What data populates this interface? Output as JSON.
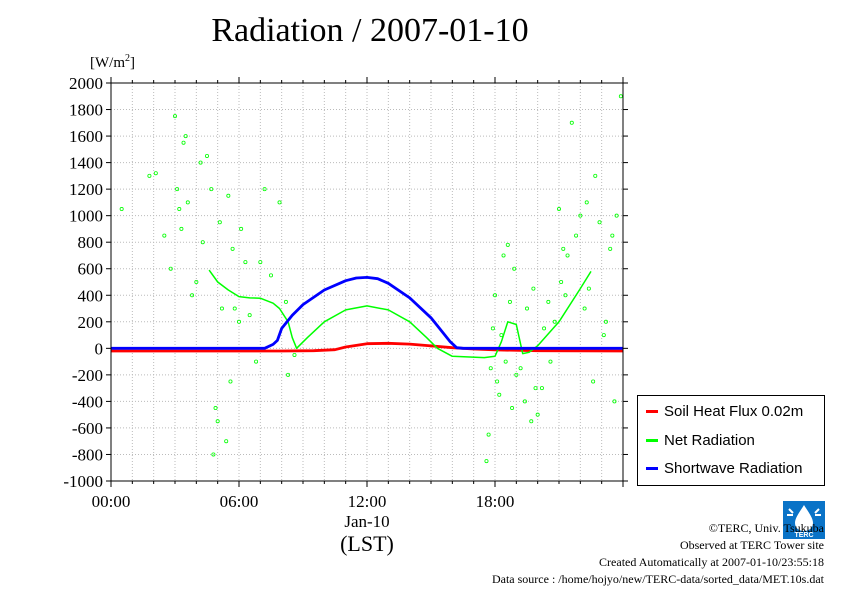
{
  "chart_data": {
    "type": "line",
    "title": "Radiation / 2007-01-10",
    "ylabel_unit": "W/m",
    "ylabel_unit_exp": "2",
    "ylim": [
      -1000,
      2000
    ],
    "y_ticks": [
      "2000",
      "1800",
      "1600",
      "1400",
      "1200",
      "1000",
      "800",
      "600",
      "400",
      "200",
      "0",
      "-200",
      "-400",
      "-600",
      "-800",
      "-1000"
    ],
    "y_tick_values": [
      2000,
      1800,
      1600,
      1400,
      1200,
      1000,
      800,
      600,
      400,
      200,
      0,
      -200,
      -400,
      -600,
      -800,
      -1000
    ],
    "xlim_hours": [
      0,
      24
    ],
    "x_ticks": [
      "00:00",
      "06:00",
      "12:00",
      "18:00"
    ],
    "x_tick_hours": [
      0,
      6,
      12,
      18
    ],
    "x_sublabel": "Jan-10",
    "x_unit_label": "(LST)",
    "grid": true,
    "legend_position": "bottom-right",
    "series": [
      {
        "name": "Soil Heat Flux 0.02m",
        "color": "#ff0000",
        "points": [
          [
            0,
            -20
          ],
          [
            4,
            -20
          ],
          [
            8,
            -20
          ],
          [
            9.5,
            -18
          ],
          [
            10.5,
            -10
          ],
          [
            11,
            10
          ],
          [
            12,
            35
          ],
          [
            13,
            38
          ],
          [
            14,
            32
          ],
          [
            15,
            18
          ],
          [
            16,
            5
          ],
          [
            17,
            -5
          ],
          [
            18,
            -12
          ],
          [
            20,
            -18
          ],
          [
            24,
            -20
          ]
        ]
      },
      {
        "name": "Net Radiation",
        "color": "#00ff00",
        "points": [
          [
            4.6,
            590
          ],
          [
            5,
            500
          ],
          [
            5.5,
            440
          ],
          [
            6,
            390
          ],
          [
            6.5,
            380
          ],
          [
            7,
            378
          ],
          [
            7.6,
            340
          ],
          [
            7.9,
            300
          ],
          [
            8.3,
            200
          ],
          [
            8.5,
            80
          ],
          [
            8.7,
            0
          ],
          [
            9.2,
            80
          ],
          [
            10,
            200
          ],
          [
            11,
            290
          ],
          [
            12,
            320
          ],
          [
            13,
            290
          ],
          [
            14,
            200
          ],
          [
            14.8,
            80
          ],
          [
            15.3,
            0
          ],
          [
            16,
            -60
          ],
          [
            17.5,
            -70
          ],
          [
            18,
            -60
          ],
          [
            18.3,
            50
          ],
          [
            18.6,
            200
          ],
          [
            19,
            180
          ],
          [
            19.3,
            -40
          ],
          [
            19.6,
            -30
          ],
          [
            20,
            20
          ],
          [
            21,
            200
          ],
          [
            22,
            450
          ],
          [
            22.5,
            580
          ]
        ]
      },
      {
        "name": "Shortwave Radiation",
        "color": "#0000ff",
        "points": [
          [
            0,
            0
          ],
          [
            6,
            0
          ],
          [
            7.2,
            0
          ],
          [
            7.6,
            30
          ],
          [
            7.8,
            60
          ],
          [
            8,
            150
          ],
          [
            8.5,
            250
          ],
          [
            9,
            330
          ],
          [
            10,
            440
          ],
          [
            11,
            510
          ],
          [
            11.5,
            530
          ],
          [
            12,
            535
          ],
          [
            12.5,
            525
          ],
          [
            13,
            490
          ],
          [
            14,
            380
          ],
          [
            15,
            230
          ],
          [
            15.5,
            130
          ],
          [
            15.9,
            50
          ],
          [
            16.2,
            5
          ],
          [
            16.5,
            0
          ],
          [
            24,
            0
          ]
        ]
      }
    ],
    "net_scatter": [
      [
        0.5,
        1050
      ],
      [
        1.8,
        1300
      ],
      [
        2.1,
        1320
      ],
      [
        2.5,
        850
      ],
      [
        2.8,
        600
      ],
      [
        3,
        1750
      ],
      [
        3.1,
        1200
      ],
      [
        3.2,
        1050
      ],
      [
        3.3,
        900
      ],
      [
        3.4,
        1550
      ],
      [
        3.5,
        1600
      ],
      [
        3.6,
        1100
      ],
      [
        3.8,
        400
      ],
      [
        4,
        500
      ],
      [
        4.2,
        1400
      ],
      [
        4.3,
        800
      ],
      [
        4.5,
        1450
      ],
      [
        4.7,
        1200
      ],
      [
        4.8,
        -800
      ],
      [
        4.9,
        -450
      ],
      [
        5,
        -550
      ],
      [
        5.1,
        950
      ],
      [
        5.2,
        300
      ],
      [
        5.4,
        -700
      ],
      [
        5.5,
        1150
      ],
      [
        5.6,
        -250
      ],
      [
        5.7,
        750
      ],
      [
        5.8,
        300
      ],
      [
        6,
        200
      ],
      [
        6.1,
        900
      ],
      [
        6.3,
        650
      ],
      [
        6.5,
        250
      ],
      [
        6.8,
        -100
      ],
      [
        7,
        650
      ],
      [
        7.2,
        1200
      ],
      [
        7.5,
        550
      ],
      [
        7.9,
        1100
      ],
      [
        8.2,
        350
      ],
      [
        8.3,
        -200
      ],
      [
        8.6,
        -50
      ],
      [
        17.6,
        -850
      ],
      [
        17.7,
        -650
      ],
      [
        17.8,
        -150
      ],
      [
        17.9,
        150
      ],
      [
        18,
        400
      ],
      [
        18.1,
        -250
      ],
      [
        18.2,
        -350
      ],
      [
        18.3,
        100
      ],
      [
        18.4,
        700
      ],
      [
        18.5,
        -100
      ],
      [
        18.6,
        780
      ],
      [
        18.7,
        350
      ],
      [
        18.8,
        -450
      ],
      [
        18.9,
        600
      ],
      [
        19,
        -200
      ],
      [
        19.2,
        -150
      ],
      [
        19.4,
        -400
      ],
      [
        19.5,
        300
      ],
      [
        19.7,
        -550
      ],
      [
        19.8,
        450
      ],
      [
        19.9,
        -300
      ],
      [
        20,
        -500
      ],
      [
        20.2,
        -300
      ],
      [
        20.3,
        150
      ],
      [
        20.5,
        350
      ],
      [
        20.6,
        -100
      ],
      [
        20.8,
        200
      ],
      [
        21,
        1050
      ],
      [
        21.1,
        500
      ],
      [
        21.2,
        750
      ],
      [
        21.3,
        400
      ],
      [
        21.4,
        700
      ],
      [
        21.6,
        1700
      ],
      [
        21.8,
        850
      ],
      [
        22,
        1000
      ],
      [
        22.2,
        300
      ],
      [
        22.3,
        1100
      ],
      [
        22.4,
        450
      ],
      [
        22.6,
        -250
      ],
      [
        22.7,
        1300
      ],
      [
        22.9,
        950
      ],
      [
        23.1,
        100
      ],
      [
        23.2,
        200
      ],
      [
        23.4,
        750
      ],
      [
        23.5,
        850
      ],
      [
        23.6,
        -400
      ],
      [
        23.7,
        1000
      ],
      [
        23.9,
        1900
      ]
    ]
  },
  "credits": {
    "copyright": "©TERC, Univ. Tsukuba",
    "observed": "Observed at TERC Tower site",
    "created": "Created Automatically at 2007-01-10/23:55:18",
    "source": "Data source : /home/hojyo/new/TERC-data/sorted_data/MET.10s.dat",
    "logo_text": "TERC"
  }
}
